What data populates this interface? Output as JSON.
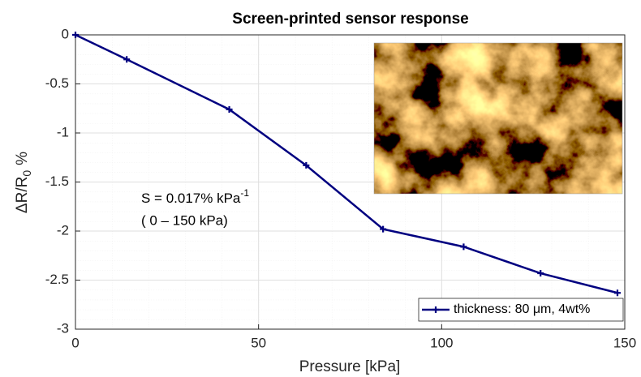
{
  "chart_data": {
    "type": "line",
    "title": "Screen-printed sensor response",
    "x_label": "Pressure [kPa]",
    "y_label": {
      "text": "ΔR/R",
      "subscript": "0",
      "suffix": "%"
    },
    "annotation": {
      "text": "S = 0.017% kPa",
      "superscript": "-1",
      "range": "( 0 – 150 kPa)"
    },
    "x": [
      0,
      14,
      42,
      63,
      84,
      106,
      127,
      148
    ],
    "series": [
      {
        "name": "thickness: 80 μm, 4wt%",
        "color": "#000080",
        "values": [
          0,
          -0.25,
          -0.76,
          -1.33,
          -1.98,
          -2.16,
          -2.43,
          -2.63
        ]
      }
    ],
    "xlim": [
      0,
      150
    ],
    "xticks": [
      0,
      50,
      100,
      150
    ],
    "ylim": [
      -3,
      0
    ],
    "yticks": [
      0,
      -0.5,
      -1,
      -1.5,
      -2,
      -2.5,
      -3
    ],
    "grid": true,
    "legend": "lower right"
  }
}
